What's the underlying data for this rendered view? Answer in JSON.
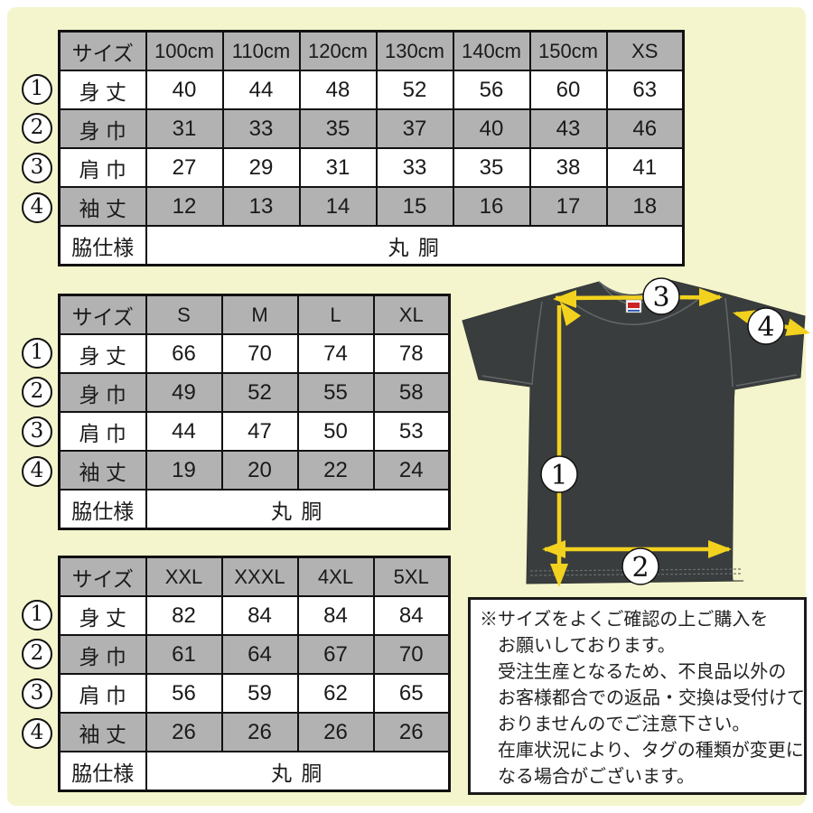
{
  "colors": {
    "background": "#f4f5cc",
    "table_shade_gray": "#b2b2b2",
    "table_border": "#111111",
    "arrow_yellow": "#f2d21e",
    "shirt_charcoal": "#3a3d3d",
    "badge_white": "#ffffff"
  },
  "tables": [
    {
      "name": "kids-sizes",
      "header": [
        "サイズ",
        "100cm",
        "110cm",
        "120cm",
        "130cm",
        "140cm",
        "150cm",
        "XS"
      ],
      "rows": [
        {
          "badge": "1",
          "label": "身 丈",
          "values": [
            "40",
            "44",
            "48",
            "52",
            "56",
            "60",
            "63"
          ]
        },
        {
          "badge": "2",
          "label": "身 巾",
          "values": [
            "31",
            "33",
            "35",
            "37",
            "40",
            "43",
            "46"
          ]
        },
        {
          "badge": "3",
          "label": "肩 巾",
          "values": [
            "27",
            "29",
            "31",
            "33",
            "35",
            "38",
            "41"
          ]
        },
        {
          "badge": "4",
          "label": "袖 丈",
          "values": [
            "12",
            "13",
            "14",
            "15",
            "16",
            "17",
            "18"
          ]
        }
      ],
      "footer": {
        "label": "脇仕様",
        "value": "丸 胴"
      }
    },
    {
      "name": "adult-sizes",
      "header": [
        "サイズ",
        "S",
        "M",
        "L",
        "XL"
      ],
      "rows": [
        {
          "badge": "1",
          "label": "身 丈",
          "values": [
            "66",
            "70",
            "74",
            "78"
          ]
        },
        {
          "badge": "2",
          "label": "身 巾",
          "values": [
            "49",
            "52",
            "55",
            "58"
          ]
        },
        {
          "badge": "3",
          "label": "肩 巾",
          "values": [
            "44",
            "47",
            "50",
            "53"
          ]
        },
        {
          "badge": "4",
          "label": "袖 丈",
          "values": [
            "19",
            "20",
            "22",
            "24"
          ]
        }
      ],
      "footer": {
        "label": "脇仕様",
        "value": "丸 胴"
      }
    },
    {
      "name": "big-sizes",
      "header": [
        "サイズ",
        "XXL",
        "XXXL",
        "4XL",
        "5XL"
      ],
      "rows": [
        {
          "badge": "1",
          "label": "身 丈",
          "values": [
            "82",
            "84",
            "84",
            "84"
          ]
        },
        {
          "badge": "2",
          "label": "身 巾",
          "values": [
            "61",
            "64",
            "67",
            "70"
          ]
        },
        {
          "badge": "3",
          "label": "肩 巾",
          "values": [
            "56",
            "59",
            "62",
            "65"
          ]
        },
        {
          "badge": "4",
          "label": "袖 丈",
          "values": [
            "26",
            "26",
            "26",
            "26"
          ]
        }
      ],
      "footer": {
        "label": "脇仕様",
        "value": "丸 胴"
      }
    }
  ],
  "diagram": {
    "badges": {
      "length": "1",
      "width": "2",
      "shoulder": "3",
      "sleeve": "4"
    }
  },
  "notice": {
    "lines": [
      "※サイズをよくご確認の上ご購入を",
      "お願いしております。",
      "受注生産となるため、不良品以外の",
      "お客様都合での返品・交換は受付けて",
      "おりませんのでご注意下さい。",
      "在庫状況により、タグの種類が変更に",
      "なる場合がございます。"
    ]
  }
}
